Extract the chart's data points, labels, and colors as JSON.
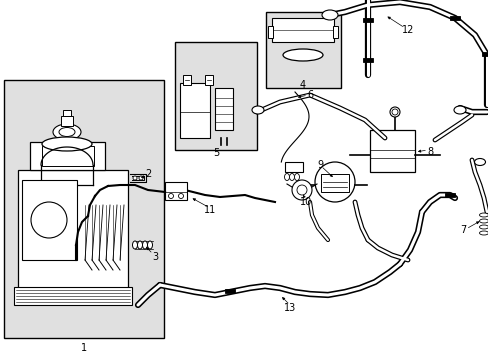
{
  "bg_color": "#ffffff",
  "line_color": "#000000",
  "gray_fill": "#e0e0e0",
  "fig_w": 4.89,
  "fig_h": 3.6,
  "dpi": 100
}
